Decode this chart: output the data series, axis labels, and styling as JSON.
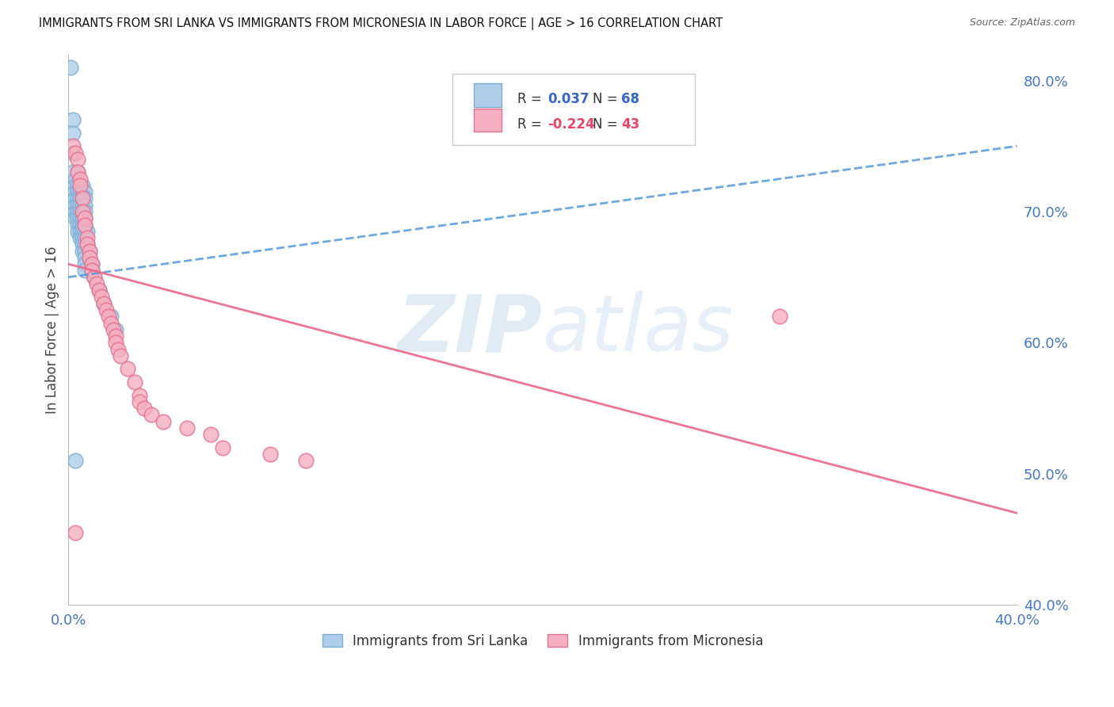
{
  "title": "IMMIGRANTS FROM SRI LANKA VS IMMIGRANTS FROM MICRONESIA IN LABOR FORCE | AGE > 16 CORRELATION CHART",
  "source": "Source: ZipAtlas.com",
  "ylabel": "In Labor Force | Age > 16",
  "x_min": 0.0,
  "x_max": 0.4,
  "y_min": 0.4,
  "y_max": 0.82,
  "y_ticks": [
    0.4,
    0.5,
    0.6,
    0.7,
    0.8
  ],
  "y_tick_labels": [
    "40.0%",
    "50.0%",
    "60.0%",
    "70.0%",
    "80.0%"
  ],
  "sri_lanka_color": "#aecde8",
  "micronesia_color": "#f5afc0",
  "sri_lanka_edge": "#7aafd4",
  "micronesia_edge": "#e87090",
  "trend_sri_lanka_color": "#5599dd",
  "trend_micronesia_color": "#ee6688",
  "legend_R_sri": "0.037",
  "legend_N_sri": "68",
  "legend_R_mic": "-0.224",
  "legend_N_mic": "43",
  "watermark_zip": "ZIP",
  "watermark_atlas": "atlas",
  "sri_lanka_label": "Immigrants from Sri Lanka",
  "micronesia_label": "Immigrants from Micronesia",
  "sri_lanka_x": [
    0.001,
    0.002,
    0.002,
    0.002,
    0.002,
    0.003,
    0.003,
    0.003,
    0.003,
    0.003,
    0.003,
    0.003,
    0.004,
    0.004,
    0.004,
    0.004,
    0.004,
    0.004,
    0.004,
    0.004,
    0.004,
    0.005,
    0.005,
    0.005,
    0.005,
    0.005,
    0.005,
    0.005,
    0.005,
    0.005,
    0.006,
    0.006,
    0.006,
    0.006,
    0.006,
    0.006,
    0.006,
    0.006,
    0.006,
    0.006,
    0.006,
    0.006,
    0.006,
    0.007,
    0.007,
    0.007,
    0.007,
    0.007,
    0.007,
    0.007,
    0.007,
    0.007,
    0.007,
    0.007,
    0.007,
    0.007,
    0.008,
    0.008,
    0.009,
    0.009,
    0.01,
    0.01,
    0.011,
    0.013,
    0.015,
    0.018,
    0.02,
    0.003
  ],
  "sri_lanka_y": [
    0.81,
    0.77,
    0.76,
    0.745,
    0.73,
    0.725,
    0.72,
    0.715,
    0.71,
    0.705,
    0.7,
    0.695,
    0.73,
    0.72,
    0.715,
    0.71,
    0.705,
    0.7,
    0.695,
    0.69,
    0.685,
    0.72,
    0.715,
    0.71,
    0.705,
    0.7,
    0.695,
    0.69,
    0.685,
    0.68,
    0.72,
    0.715,
    0.71,
    0.705,
    0.7,
    0.698,
    0.695,
    0.69,
    0.688,
    0.685,
    0.68,
    0.675,
    0.67,
    0.715,
    0.71,
    0.705,
    0.7,
    0.695,
    0.69,
    0.685,
    0.68,
    0.675,
    0.67,
    0.665,
    0.66,
    0.655,
    0.685,
    0.675,
    0.67,
    0.665,
    0.66,
    0.655,
    0.65,
    0.64,
    0.63,
    0.62,
    0.61,
    0.51
  ],
  "micronesia_x": [
    0.002,
    0.003,
    0.004,
    0.004,
    0.005,
    0.005,
    0.006,
    0.006,
    0.007,
    0.007,
    0.008,
    0.008,
    0.009,
    0.009,
    0.01,
    0.01,
    0.011,
    0.012,
    0.013,
    0.014,
    0.015,
    0.016,
    0.017,
    0.018,
    0.019,
    0.02,
    0.02,
    0.021,
    0.022,
    0.025,
    0.028,
    0.03,
    0.03,
    0.032,
    0.035,
    0.04,
    0.05,
    0.06,
    0.065,
    0.085,
    0.1,
    0.3,
    0.003
  ],
  "micronesia_y": [
    0.75,
    0.745,
    0.74,
    0.73,
    0.725,
    0.72,
    0.71,
    0.7,
    0.695,
    0.69,
    0.68,
    0.675,
    0.67,
    0.665,
    0.66,
    0.655,
    0.65,
    0.645,
    0.64,
    0.635,
    0.63,
    0.625,
    0.62,
    0.615,
    0.61,
    0.605,
    0.6,
    0.595,
    0.59,
    0.58,
    0.57,
    0.56,
    0.555,
    0.55,
    0.545,
    0.54,
    0.535,
    0.53,
    0.52,
    0.515,
    0.51,
    0.62,
    0.455
  ],
  "trend_sri_y0": 0.65,
  "trend_sri_y1": 0.75,
  "trend_mic_y0": 0.66,
  "trend_mic_y1": 0.47
}
